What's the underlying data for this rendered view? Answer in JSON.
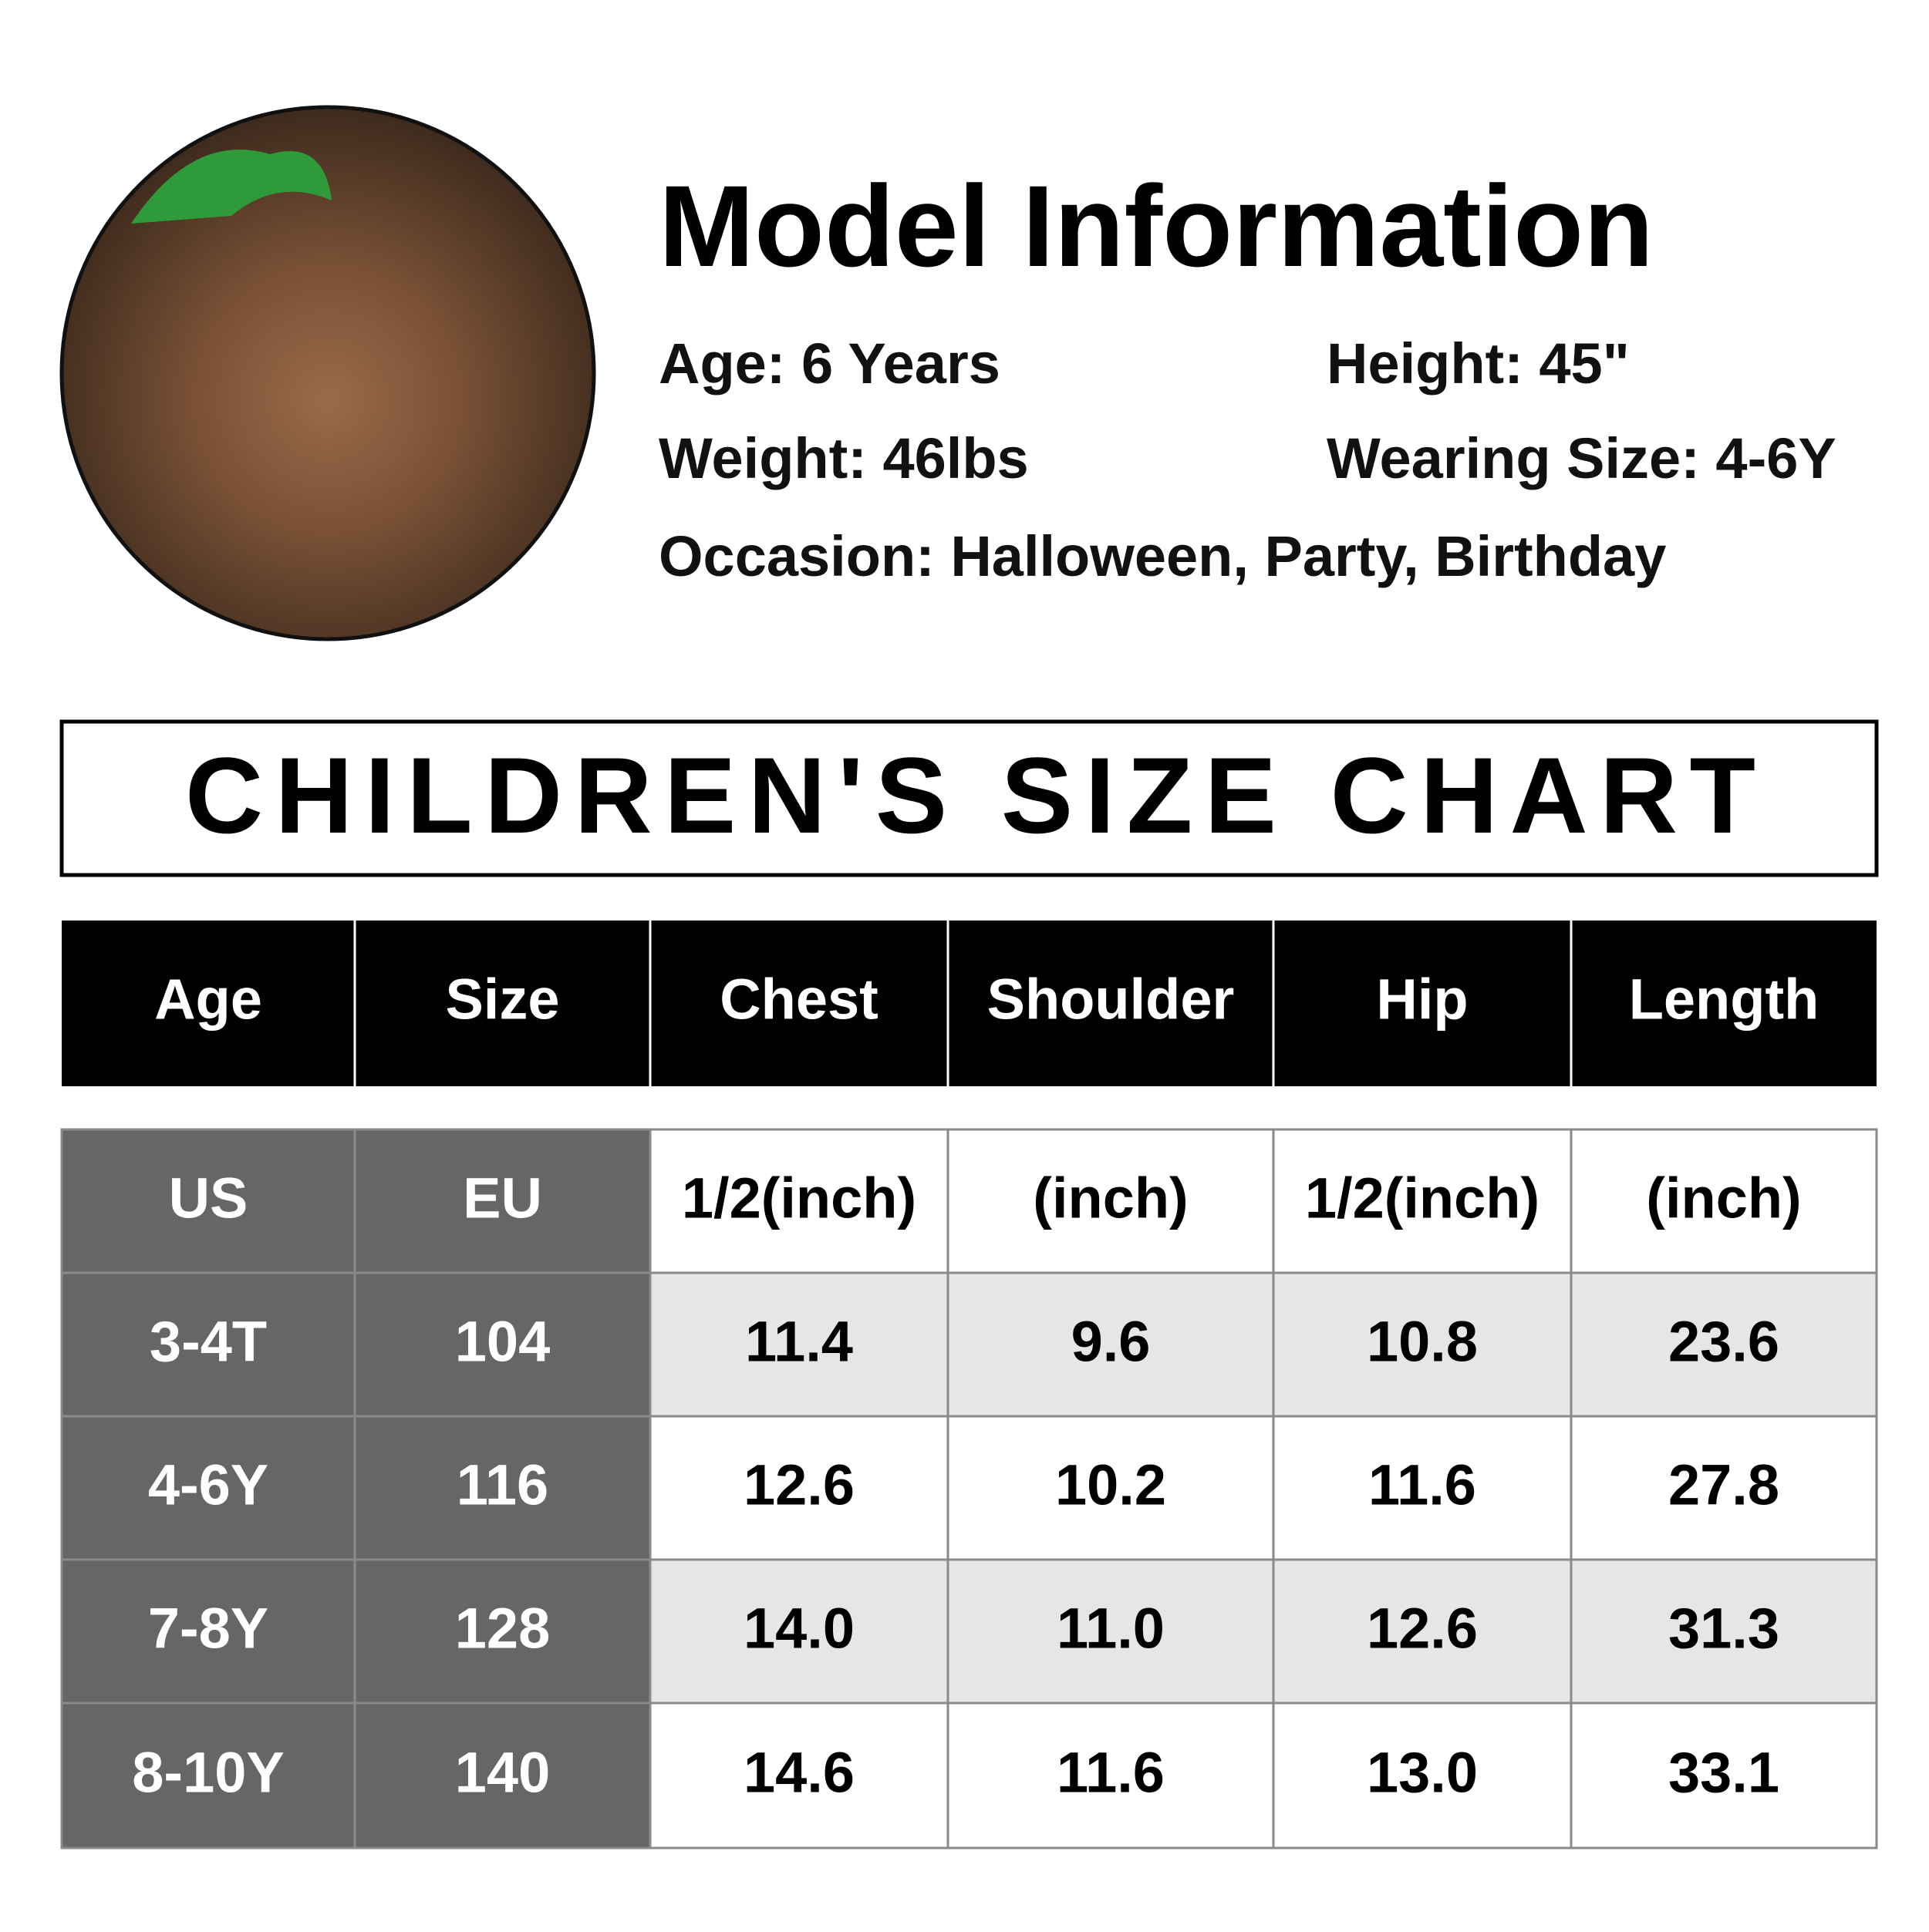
{
  "model": {
    "title": "Model Information",
    "info": [
      "Age: 6 Years",
      "Height: 45\"",
      "Weight: 46lbs",
      "Wearing Size: 4-6Y",
      "Occasion: Halloween, Party, Birthday"
    ]
  },
  "size_chart": {
    "title": "CHILDREN'S SIZE CHART",
    "header": [
      "Age",
      "Size",
      "Chest",
      "Shoulder",
      "Hip",
      "Length"
    ],
    "units": [
      "US",
      "EU",
      "1/2(inch)",
      "(inch)",
      "1/2(inch)",
      "(inch)"
    ],
    "rows": [
      [
        "3-4T",
        "104",
        "11.4",
        "9.6",
        "10.8",
        "23.6"
      ],
      [
        "4-6Y",
        "116",
        "12.6",
        "10.2",
        "11.6",
        "27.8"
      ],
      [
        "7-8Y",
        "128",
        "14.0",
        "11.0",
        "12.6",
        "31.3"
      ],
      [
        "8-10Y",
        "140",
        "14.6",
        "11.6",
        "13.0",
        "33.1"
      ]
    ]
  }
}
